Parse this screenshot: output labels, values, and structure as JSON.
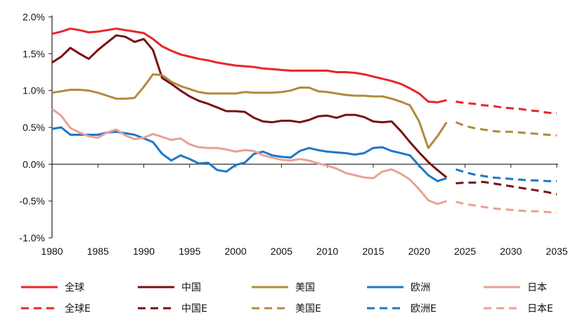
{
  "chart_data": {
    "type": "line",
    "title": "",
    "xlabel": "",
    "ylabel": "",
    "xlim": [
      1980,
      2035
    ],
    "ylim": [
      -1.0,
      2.0
    ],
    "x_ticks": [
      "1980",
      "1985",
      "1990",
      "1995",
      "2000",
      "2005",
      "2010",
      "2015",
      "2020",
      "2025",
      "2030",
      "2035"
    ],
    "y_ticks": [
      "2.0%",
      "1.5%",
      "1.0%",
      "0.5%",
      "0.0%",
      "-0.5%",
      "-1.0%"
    ],
    "y_tick_values": [
      2.0,
      1.5,
      1.0,
      0.5,
      0.0,
      -0.5,
      -1.0
    ],
    "x_tick_values": [
      1980,
      1985,
      1990,
      1995,
      2000,
      2005,
      2010,
      2015,
      2020,
      2025,
      2030,
      2035
    ],
    "grid": false,
    "legend_position": "bottom",
    "series": [
      {
        "name": "全球",
        "color": "#e8262a",
        "dash": false,
        "x": [
          1980,
          1981,
          1982,
          1983,
          1984,
          1985,
          1986,
          1987,
          1988,
          1989,
          1990,
          1991,
          1992,
          1993,
          1994,
          1995,
          1996,
          1997,
          1998,
          1999,
          2000,
          2001,
          2002,
          2003,
          2004,
          2005,
          2006,
          2007,
          2008,
          2009,
          2010,
          2011,
          2012,
          2013,
          2014,
          2015,
          2016,
          2017,
          2018,
          2019,
          2020,
          2021,
          2022,
          2023
        ],
        "y": [
          1.77,
          1.8,
          1.84,
          1.82,
          1.79,
          1.8,
          1.82,
          1.84,
          1.82,
          1.8,
          1.78,
          1.7,
          1.6,
          1.54,
          1.49,
          1.46,
          1.43,
          1.41,
          1.38,
          1.36,
          1.34,
          1.33,
          1.32,
          1.3,
          1.29,
          1.28,
          1.27,
          1.27,
          1.27,
          1.27,
          1.27,
          1.25,
          1.25,
          1.24,
          1.22,
          1.19,
          1.16,
          1.13,
          1.09,
          1.03,
          0.96,
          0.85,
          0.84,
          0.87
        ]
      },
      {
        "name": "中国",
        "color": "#7a1010",
        "dash": false,
        "x": [
          1980,
          1981,
          1982,
          1983,
          1984,
          1985,
          1986,
          1987,
          1988,
          1989,
          1990,
          1991,
          1992,
          1993,
          1994,
          1995,
          1996,
          1997,
          1998,
          1999,
          2000,
          2001,
          2002,
          2003,
          2004,
          2005,
          2006,
          2007,
          2008,
          2009,
          2010,
          2011,
          2012,
          2013,
          2014,
          2015,
          2016,
          2017,
          2018,
          2019,
          2020,
          2021,
          2022,
          2023
        ],
        "y": [
          1.38,
          1.46,
          1.58,
          1.5,
          1.43,
          1.55,
          1.65,
          1.75,
          1.73,
          1.66,
          1.7,
          1.55,
          1.17,
          1.09,
          1.0,
          0.92,
          0.86,
          0.82,
          0.77,
          0.72,
          0.72,
          0.71,
          0.63,
          0.58,
          0.57,
          0.59,
          0.59,
          0.57,
          0.6,
          0.65,
          0.66,
          0.63,
          0.67,
          0.67,
          0.64,
          0.58,
          0.57,
          0.58,
          0.45,
          0.3,
          0.16,
          0.03,
          -0.08,
          -0.18
        ]
      },
      {
        "name": "美国",
        "color": "#b08b3c",
        "dash": false,
        "x": [
          1980,
          1981,
          1982,
          1983,
          1984,
          1985,
          1986,
          1987,
          1988,
          1989,
          1990,
          1991,
          1992,
          1993,
          1994,
          1995,
          1996,
          1997,
          1998,
          1999,
          2000,
          2001,
          2002,
          2003,
          2004,
          2005,
          2006,
          2007,
          2008,
          2009,
          2010,
          2011,
          2012,
          2013,
          2014,
          2015,
          2016,
          2017,
          2018,
          2019,
          2020,
          2021,
          2022,
          2023
        ],
        "y": [
          0.97,
          0.99,
          1.01,
          1.01,
          1.0,
          0.97,
          0.93,
          0.89,
          0.89,
          0.9,
          1.05,
          1.22,
          1.21,
          1.12,
          1.06,
          1.02,
          0.98,
          0.96,
          0.96,
          0.96,
          0.96,
          0.98,
          0.97,
          0.97,
          0.97,
          0.98,
          1.0,
          1.04,
          1.04,
          0.99,
          0.98,
          0.96,
          0.94,
          0.93,
          0.93,
          0.92,
          0.92,
          0.89,
          0.85,
          0.8,
          0.58,
          0.22,
          0.38,
          0.57
        ]
      },
      {
        "name": "欧洲",
        "color": "#1f77c8",
        "dash": false,
        "x": [
          1980,
          1981,
          1982,
          1983,
          1984,
          1985,
          1986,
          1987,
          1988,
          1989,
          1990,
          1991,
          1992,
          1993,
          1994,
          1995,
          1996,
          1997,
          1998,
          1999,
          2000,
          2001,
          2002,
          2003,
          2004,
          2005,
          2006,
          2007,
          2008,
          2009,
          2010,
          2011,
          2012,
          2013,
          2014,
          2015,
          2016,
          2017,
          2018,
          2019,
          2020,
          2021,
          2022,
          2023
        ],
        "y": [
          0.48,
          0.5,
          0.4,
          0.4,
          0.4,
          0.4,
          0.43,
          0.44,
          0.42,
          0.4,
          0.35,
          0.3,
          0.14,
          0.05,
          0.12,
          0.07,
          0.01,
          0.02,
          -0.08,
          -0.1,
          -0.01,
          0.02,
          0.14,
          0.17,
          0.12,
          0.1,
          0.09,
          0.18,
          0.22,
          0.19,
          0.17,
          0.16,
          0.15,
          0.13,
          0.15,
          0.22,
          0.23,
          0.18,
          0.15,
          0.12,
          -0.02,
          -0.15,
          -0.23,
          -0.19
        ]
      },
      {
        "name": "日本",
        "color": "#e9a292",
        "dash": false,
        "x": [
          1980,
          1981,
          1982,
          1983,
          1984,
          1985,
          1986,
          1987,
          1988,
          1989,
          1990,
          1991,
          1992,
          1993,
          1994,
          1995,
          1996,
          1997,
          1998,
          1999,
          2000,
          2001,
          2002,
          2003,
          2004,
          2005,
          2006,
          2007,
          2008,
          2009,
          2010,
          2011,
          2012,
          2013,
          2014,
          2015,
          2016,
          2017,
          2018,
          2019,
          2020,
          2021,
          2022,
          2023
        ],
        "y": [
          0.75,
          0.66,
          0.49,
          0.43,
          0.38,
          0.36,
          0.43,
          0.47,
          0.39,
          0.34,
          0.36,
          0.41,
          0.37,
          0.33,
          0.35,
          0.27,
          0.23,
          0.22,
          0.22,
          0.2,
          0.17,
          0.19,
          0.18,
          0.12,
          0.09,
          0.06,
          0.05,
          0.07,
          0.05,
          0.01,
          -0.02,
          -0.06,
          -0.12,
          -0.15,
          -0.18,
          -0.19,
          -0.1,
          -0.07,
          -0.13,
          -0.21,
          -0.34,
          -0.49,
          -0.54,
          -0.5
        ]
      },
      {
        "name": "全球E",
        "color": "#e8262a",
        "dash": true,
        "x": [
          2024,
          2025,
          2026,
          2027,
          2028,
          2029,
          2030,
          2031,
          2032,
          2033,
          2034,
          2035
        ],
        "y": [
          0.85,
          0.83,
          0.82,
          0.8,
          0.79,
          0.77,
          0.76,
          0.75,
          0.73,
          0.72,
          0.7,
          0.69
        ]
      },
      {
        "name": "中国E",
        "color": "#7a1010",
        "dash": true,
        "x": [
          2024,
          2025,
          2026,
          2027,
          2028,
          2029,
          2030,
          2031,
          2032,
          2033,
          2034,
          2035
        ],
        "y": [
          -0.26,
          -0.25,
          -0.25,
          -0.24,
          -0.26,
          -0.28,
          -0.3,
          -0.32,
          -0.34,
          -0.36,
          -0.38,
          -0.41
        ]
      },
      {
        "name": "美国E",
        "color": "#b08b3c",
        "dash": true,
        "x": [
          2024,
          2025,
          2026,
          2027,
          2028,
          2029,
          2030,
          2031,
          2032,
          2033,
          2034,
          2035
        ],
        "y": [
          0.57,
          0.52,
          0.49,
          0.47,
          0.45,
          0.44,
          0.44,
          0.43,
          0.42,
          0.41,
          0.4,
          0.39
        ]
      },
      {
        "name": "欧洲E",
        "color": "#1f77c8",
        "dash": true,
        "x": [
          2024,
          2025,
          2026,
          2027,
          2028,
          2029,
          2030,
          2031,
          2032,
          2033,
          2034,
          2035
        ],
        "y": [
          -0.07,
          -0.11,
          -0.14,
          -0.16,
          -0.18,
          -0.19,
          -0.2,
          -0.21,
          -0.22,
          -0.22,
          -0.23,
          -0.23
        ]
      },
      {
        "name": "日本E",
        "color": "#e9a292",
        "dash": true,
        "x": [
          2024,
          2025,
          2026,
          2027,
          2028,
          2029,
          2030,
          2031,
          2032,
          2033,
          2034,
          2035
        ],
        "y": [
          -0.51,
          -0.54,
          -0.56,
          -0.58,
          -0.6,
          -0.61,
          -0.62,
          -0.63,
          -0.64,
          -0.64,
          -0.65,
          -0.66
        ]
      }
    ]
  }
}
